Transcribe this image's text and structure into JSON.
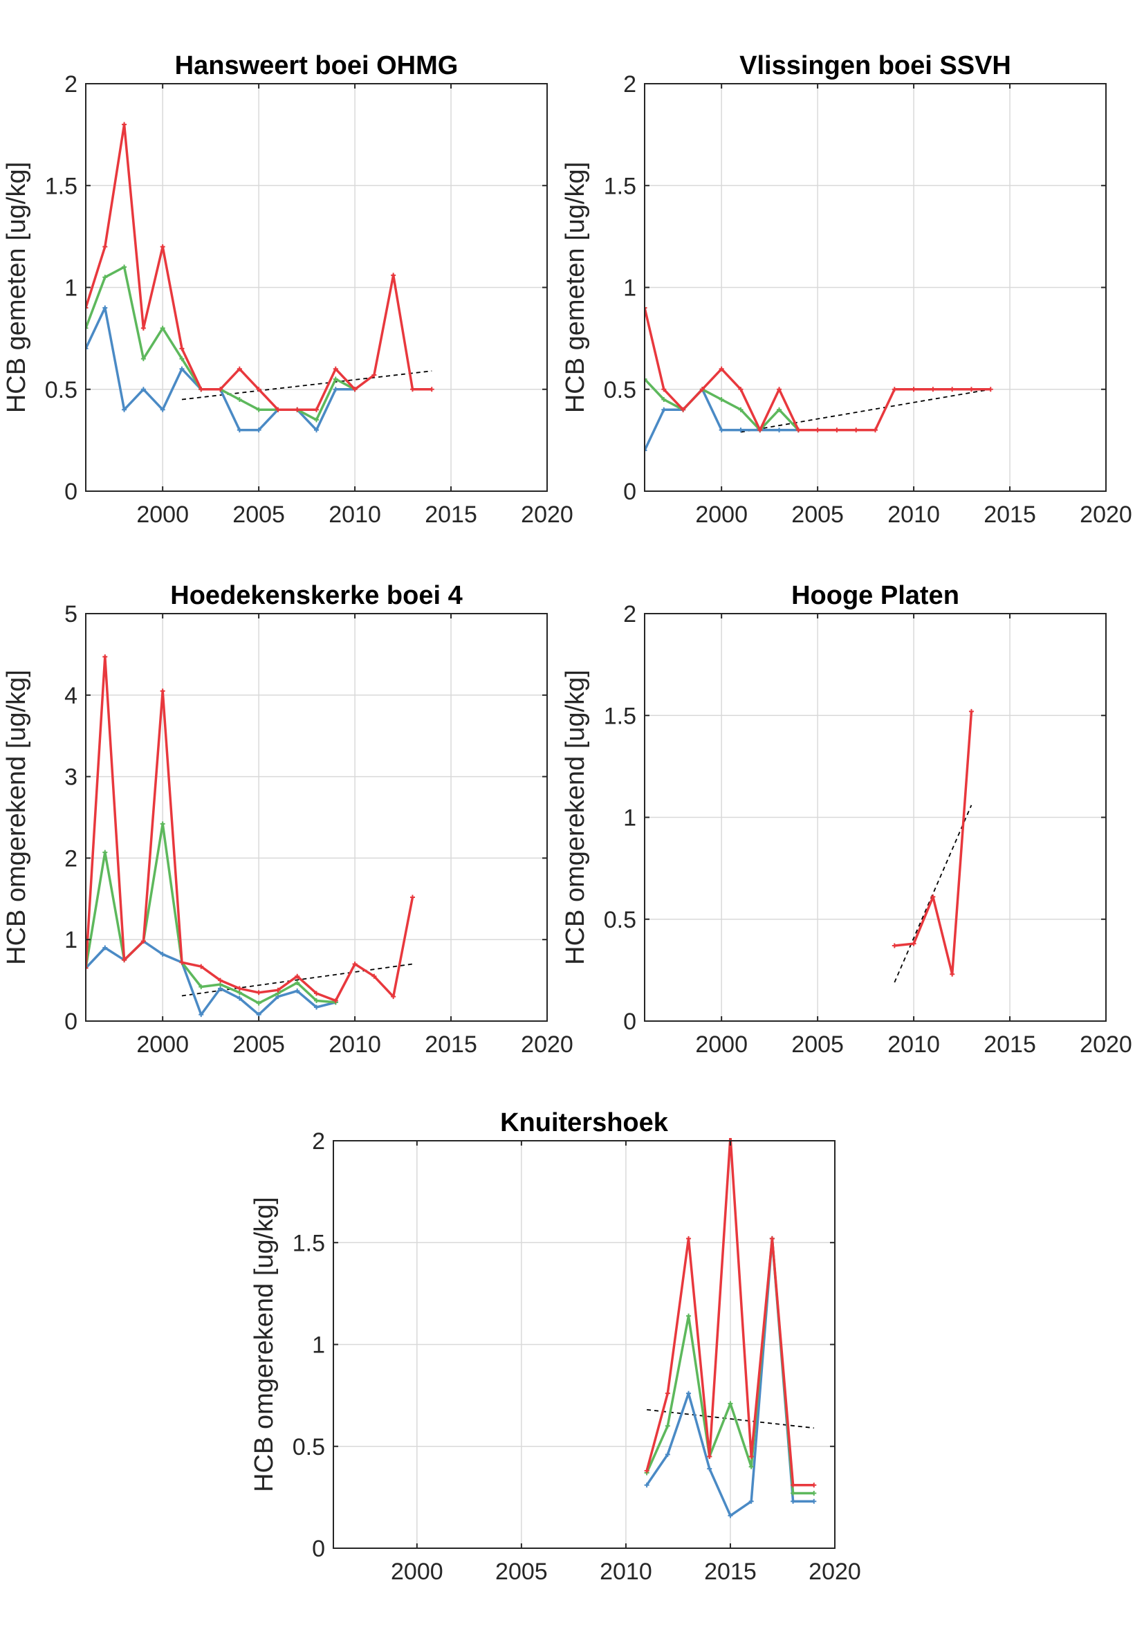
{
  "colors": {
    "blue": "#4a8ac5",
    "green": "#5db85c",
    "red": "#e8383d",
    "trend": "#000000",
    "grid": "#d9d9d9",
    "axis": "#262626"
  },
  "chart_data": [
    {
      "type": "line",
      "title": "Hansweert boei OHMG",
      "xlabel": "",
      "ylabel": "HCB gemeten [ug/kg]",
      "xlim": [
        1996,
        2020
      ],
      "ylim": [
        0,
        2
      ],
      "xticks": [
        2000,
        2005,
        2010,
        2015,
        2020
      ],
      "yticks": [
        0,
        0.5,
        1,
        1.5,
        2
      ],
      "ytick_labels": [
        "0",
        "0.5",
        "1",
        "1.5",
        "2"
      ],
      "grid": true,
      "series": [
        {
          "color": "blue",
          "points": [
            [
              1996,
              0.7
            ],
            [
              1997,
              0.9
            ],
            [
              1998,
              0.4
            ],
            [
              1999,
              0.5
            ],
            [
              2000,
              0.4
            ],
            [
              2001,
              0.6
            ],
            [
              2002,
              0.5
            ],
            [
              2003,
              0.5
            ],
            [
              2004,
              0.3
            ],
            [
              2005,
              0.3
            ],
            [
              2006,
              0.4
            ],
            [
              2007,
              0.4
            ],
            [
              2008,
              0.3
            ],
            [
              2009,
              0.5
            ],
            [
              2010,
              0.5
            ]
          ]
        },
        {
          "color": "green",
          "points": [
            [
              1996,
              0.8
            ],
            [
              1997,
              1.05
            ],
            [
              1998,
              1.1
            ],
            [
              1999,
              0.65
            ],
            [
              2000,
              0.8
            ],
            [
              2001,
              0.65
            ],
            [
              2002,
              0.5
            ],
            [
              2003,
              0.5
            ],
            [
              2004,
              0.45
            ],
            [
              2005,
              0.4
            ],
            [
              2006,
              0.4
            ],
            [
              2007,
              0.4
            ],
            [
              2008,
              0.35
            ],
            [
              2009,
              0.55
            ],
            [
              2010,
              0.5
            ]
          ]
        },
        {
          "color": "red",
          "points": [
            [
              1996,
              0.9
            ],
            [
              1997,
              1.2
            ],
            [
              1998,
              1.8
            ],
            [
              1999,
              0.8
            ],
            [
              2000,
              1.2
            ],
            [
              2001,
              0.7
            ],
            [
              2002,
              0.5
            ],
            [
              2003,
              0.5
            ],
            [
              2004,
              0.6
            ],
            [
              2005,
              0.5
            ],
            [
              2006,
              0.4
            ],
            [
              2007,
              0.4
            ],
            [
              2008,
              0.4
            ],
            [
              2009,
              0.6
            ],
            [
              2010,
              0.5
            ],
            [
              2011,
              0.57
            ],
            [
              2012,
              1.06
            ],
            [
              2013,
              0.5
            ],
            [
              2014,
              0.5
            ]
          ]
        }
      ],
      "trend": [
        [
          2001,
          0.45
        ],
        [
          2014,
          0.59
        ]
      ]
    },
    {
      "type": "line",
      "title": "Vlissingen boei SSVH",
      "xlabel": "",
      "ylabel": "HCB gemeten [ug/kg]",
      "xlim": [
        1996,
        2020
      ],
      "ylim": [
        0,
        2
      ],
      "xticks": [
        2000,
        2005,
        2010,
        2015,
        2020
      ],
      "yticks": [
        0,
        0.5,
        1,
        1.5,
        2
      ],
      "ytick_labels": [
        "0",
        "0.5",
        "1",
        "1.5",
        "2"
      ],
      "grid": true,
      "series": [
        {
          "color": "blue",
          "points": [
            [
              1996,
              0.2
            ],
            [
              1997,
              0.4
            ],
            [
              1998,
              0.4
            ],
            [
              1999,
              0.5
            ],
            [
              2000,
              0.3
            ],
            [
              2001,
              0.3
            ],
            [
              2002,
              0.3
            ],
            [
              2003,
              0.3
            ],
            [
              2004,
              0.3
            ]
          ]
        },
        {
          "color": "green",
          "points": [
            [
              1996,
              0.55
            ],
            [
              1997,
              0.45
            ],
            [
              1998,
              0.4
            ],
            [
              1999,
              0.5
            ],
            [
              2000,
              0.45
            ],
            [
              2001,
              0.4
            ],
            [
              2002,
              0.3
            ],
            [
              2003,
              0.4
            ],
            [
              2004,
              0.3
            ]
          ]
        },
        {
          "color": "red",
          "points": [
            [
              1996,
              0.9
            ],
            [
              1997,
              0.5
            ],
            [
              1998,
              0.4
            ],
            [
              1999,
              0.5
            ],
            [
              2000,
              0.6
            ],
            [
              2001,
              0.5
            ],
            [
              2002,
              0.3
            ],
            [
              2003,
              0.5
            ],
            [
              2004,
              0.3
            ],
            [
              2005,
              0.3
            ],
            [
              2006,
              0.3
            ],
            [
              2007,
              0.3
            ],
            [
              2008,
              0.3
            ],
            [
              2009,
              0.5
            ],
            [
              2010,
              0.5
            ],
            [
              2011,
              0.5
            ],
            [
              2012,
              0.5
            ],
            [
              2013,
              0.5
            ],
            [
              2014,
              0.5
            ]
          ]
        }
      ],
      "trend": [
        [
          2001,
          0.29
        ],
        [
          2014,
          0.5
        ]
      ]
    },
    {
      "type": "line",
      "title": "Hoedekenskerke boei 4",
      "xlabel": "",
      "ylabel": "HCB omgerekend [ug/kg]",
      "xlim": [
        1996,
        2020
      ],
      "ylim": [
        0,
        5
      ],
      "xticks": [
        2000,
        2005,
        2010,
        2015,
        2020
      ],
      "yticks": [
        0,
        1,
        2,
        3,
        4,
        5
      ],
      "ytick_labels": [
        "0",
        "1",
        "2",
        "3",
        "4",
        "5"
      ],
      "grid": true,
      "series": [
        {
          "color": "blue",
          "points": [
            [
              1996,
              0.65
            ],
            [
              1997,
              0.9
            ],
            [
              1998,
              0.75
            ],
            [
              1999,
              0.98
            ],
            [
              2000,
              0.82
            ],
            [
              2001,
              0.72
            ],
            [
              2002,
              0.08
            ],
            [
              2003,
              0.4
            ],
            [
              2004,
              0.28
            ],
            [
              2005,
              0.08
            ],
            [
              2006,
              0.3
            ],
            [
              2007,
              0.37
            ],
            [
              2008,
              0.17
            ],
            [
              2009,
              0.23
            ]
          ]
        },
        {
          "color": "green",
          "points": [
            [
              1996,
              0.65
            ],
            [
              1997,
              2.07
            ],
            [
              1998,
              0.75
            ],
            [
              1999,
              0.98
            ],
            [
              2000,
              2.42
            ],
            [
              2001,
              0.72
            ],
            [
              2002,
              0.42
            ],
            [
              2003,
              0.45
            ],
            [
              2004,
              0.35
            ],
            [
              2005,
              0.22
            ],
            [
              2006,
              0.34
            ],
            [
              2007,
              0.47
            ],
            [
              2008,
              0.25
            ],
            [
              2009,
              0.23
            ]
          ]
        },
        {
          "color": "red",
          "points": [
            [
              1996,
              0.65
            ],
            [
              1997,
              4.47
            ],
            [
              1998,
              0.75
            ],
            [
              1999,
              0.98
            ],
            [
              2000,
              4.05
            ],
            [
              2001,
              0.72
            ],
            [
              2002,
              0.67
            ],
            [
              2003,
              0.5
            ],
            [
              2004,
              0.4
            ],
            [
              2005,
              0.35
            ],
            [
              2006,
              0.38
            ],
            [
              2007,
              0.55
            ],
            [
              2008,
              0.34
            ],
            [
              2009,
              0.25
            ],
            [
              2010,
              0.7
            ],
            [
              2011,
              0.55
            ],
            [
              2012,
              0.3
            ],
            [
              2013,
              1.52
            ]
          ]
        }
      ],
      "trend": [
        [
          2001,
          0.31
        ],
        [
          2013,
          0.7
        ]
      ]
    },
    {
      "type": "line",
      "title": "Hooge Platen",
      "xlabel": "",
      "ylabel": "HCB omgerekend [ug/kg]",
      "xlim": [
        1996,
        2020
      ],
      "ylim": [
        0,
        2
      ],
      "xticks": [
        2000,
        2005,
        2010,
        2015,
        2020
      ],
      "yticks": [
        0,
        0.5,
        1,
        1.5,
        2
      ],
      "ytick_labels": [
        "0",
        "0.5",
        "1",
        "1.5",
        "2"
      ],
      "grid": true,
      "series": [
        {
          "color": "red",
          "points": [
            [
              2009,
              0.37
            ],
            [
              2010,
              0.38
            ],
            [
              2011,
              0.61
            ],
            [
              2012,
              0.23
            ],
            [
              2013,
              1.52
            ]
          ]
        }
      ],
      "trend": [
        [
          2009,
          0.19
        ],
        [
          2013,
          1.06
        ]
      ]
    },
    {
      "type": "line",
      "title": "Knuitershoek",
      "xlabel": "",
      "ylabel": "HCB omgerekend [ug/kg]",
      "xlim": [
        1996,
        2020
      ],
      "ylim": [
        0,
        2
      ],
      "xticks": [
        2000,
        2005,
        2010,
        2015,
        2020
      ],
      "yticks": [
        0,
        0.5,
        1,
        1.5,
        2
      ],
      "ytick_labels": [
        "0",
        "0.5",
        "1",
        "1.5",
        "2"
      ],
      "grid": true,
      "series": [
        {
          "color": "blue",
          "points": [
            [
              2011,
              0.31
            ],
            [
              2012,
              0.46
            ],
            [
              2013,
              0.76
            ],
            [
              2014,
              0.39
            ],
            [
              2015,
              0.16
            ],
            [
              2016,
              0.23
            ],
            [
              2017,
              1.52
            ],
            [
              2018,
              0.23
            ],
            [
              2019,
              0.23
            ]
          ]
        },
        {
          "color": "green",
          "points": [
            [
              2011,
              0.37
            ],
            [
              2012,
              0.6
            ],
            [
              2013,
              1.14
            ],
            [
              2014,
              0.45
            ],
            [
              2015,
              0.71
            ],
            [
              2016,
              0.4
            ],
            [
              2017,
              1.52
            ],
            [
              2018,
              0.27
            ],
            [
              2019,
              0.27
            ]
          ]
        },
        {
          "color": "red",
          "points": [
            [
              2011,
              0.38
            ],
            [
              2012,
              0.76
            ],
            [
              2013,
              1.52
            ],
            [
              2014,
              0.45
            ],
            [
              2015,
              2.02
            ],
            [
              2016,
              0.45
            ],
            [
              2017,
              1.52
            ],
            [
              2018,
              0.31
            ],
            [
              2019,
              0.31
            ]
          ]
        }
      ],
      "trend": [
        [
          2011,
          0.68
        ],
        [
          2019,
          0.59
        ]
      ]
    }
  ]
}
